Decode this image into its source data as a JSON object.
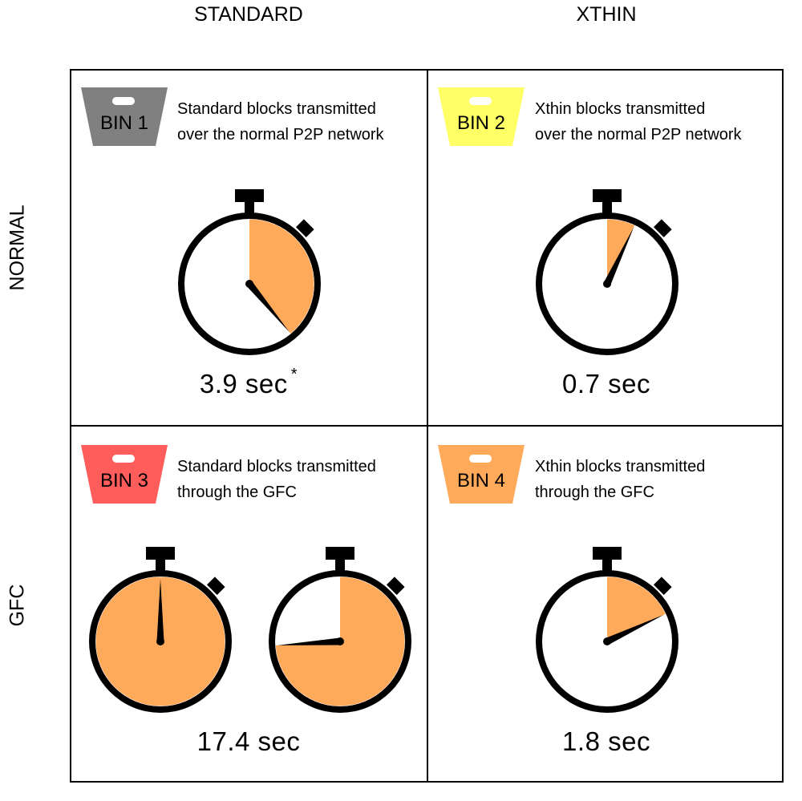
{
  "columns": {
    "standard": "STANDARD",
    "xthin": "XTHIN"
  },
  "rows": {
    "normal": "NORMAL",
    "gfc": "GFC"
  },
  "cells": [
    {
      "bin": "BIN 1",
      "bin_color": "#808080",
      "desc_line1": "Standard blocks transmitted",
      "desc_line2": "over the normal P2P network",
      "time": "3.9 sec",
      "note": "*"
    },
    {
      "bin": "BIN 2",
      "bin_color": "#ffff66",
      "desc_line1": "Xthin blocks transmitted",
      "desc_line2": "over the normal P2P network",
      "time": "0.7 sec"
    },
    {
      "bin": "BIN 3",
      "bin_color": "#ff5c5c",
      "desc_line1": "Standard blocks transmitted",
      "desc_line2": "through the GFC",
      "time": "17.4 sec"
    },
    {
      "bin": "BIN 4",
      "bin_color": "#ffa95a",
      "desc_line1": "Xthin blocks transmitted",
      "desc_line2": "through the GFC",
      "time": "1.8 sec"
    }
  ],
  "stopwatch_fill_color": "#ffa95a",
  "stopwatches": [
    {
      "id": "sw1",
      "seconds": 3.9
    },
    {
      "id": "sw2",
      "seconds": 0.7
    },
    {
      "id": "sw3a",
      "seconds": 10
    },
    {
      "id": "sw3b",
      "seconds": 7.4
    },
    {
      "id": "sw4",
      "seconds": 1.8
    }
  ]
}
